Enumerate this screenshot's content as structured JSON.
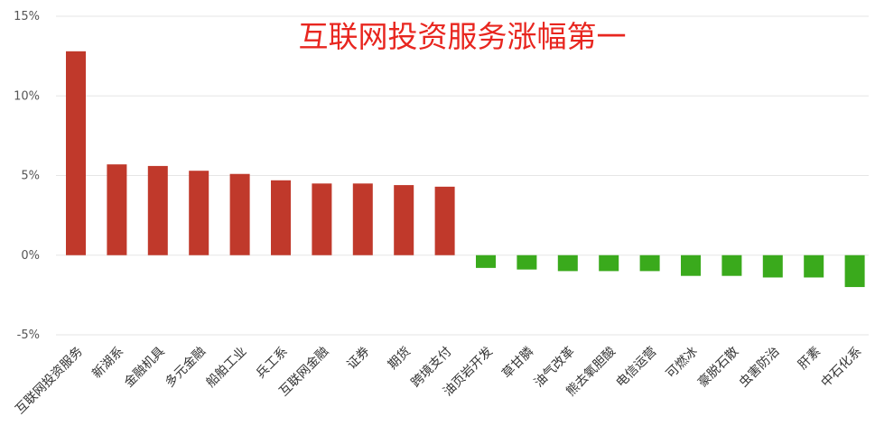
{
  "chart_data": {
    "type": "bar",
    "title": "互联网投资服务涨幅第一",
    "categories": [
      "互联网投资服务",
      "新湖系",
      "金融机具",
      "多元金融",
      "船舶工业",
      "兵工系",
      "互联网金融",
      "证券",
      "期货",
      "跨境支付",
      "油页岩开发",
      "草甘膦",
      "油气改革",
      "熊去氧胆酸",
      "电信运营",
      "可燃冰",
      "豪脱石散",
      "虫害防治",
      "肝素",
      "中石化系"
    ],
    "values": [
      12.8,
      5.7,
      5.6,
      5.3,
      5.1,
      4.7,
      4.5,
      4.5,
      4.4,
      4.3,
      -0.8,
      -0.9,
      -1.0,
      -1.0,
      -1.0,
      -1.3,
      -1.3,
      -1.4,
      -1.4,
      -2.0
    ],
    "yticks": [
      "15%",
      "10%",
      "5%",
      "0%",
      "-5%"
    ],
    "ylim": [
      -5,
      15
    ],
    "unit": "%",
    "grid": true,
    "colors": {
      "positive": "#c0392b",
      "negative": "#3aaa1c",
      "title": "#e8261f"
    }
  }
}
